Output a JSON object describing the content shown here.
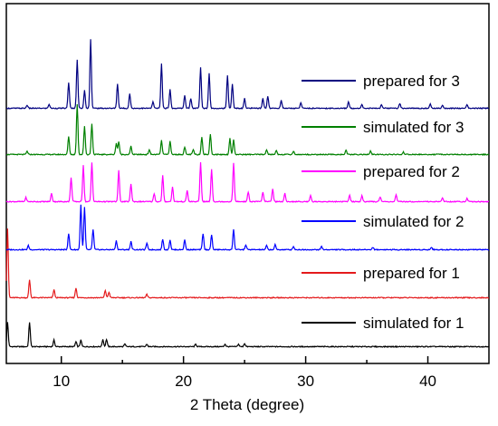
{
  "chart_data": {
    "type": "line",
    "title": "",
    "xlabel": "2 Theta (degree)",
    "ylabel": "",
    "xlim": [
      5.5,
      45
    ],
    "xticks": [
      "10",
      "20",
      "30",
      "40"
    ],
    "xtick_values": [
      10,
      20,
      30,
      40
    ],
    "y_ticks_shown": false,
    "grid": false,
    "legend_placement": "right, inline beside each trace",
    "series": [
      {
        "name": "simulated for 1",
        "color": "#000000",
        "peaks": [
          [
            5.6,
            30
          ],
          [
            7.4,
            30
          ],
          [
            9.4,
            8
          ],
          [
            11.2,
            6
          ],
          [
            11.6,
            8
          ],
          [
            13.4,
            9
          ],
          [
            13.7,
            9
          ],
          [
            15.2,
            3
          ],
          [
            17.0,
            3
          ],
          [
            21.0,
            3
          ],
          [
            23.4,
            3
          ],
          [
            24.5,
            3
          ],
          [
            25.0,
            4
          ]
        ]
      },
      {
        "name": "prepared for 1",
        "color": "#e41a1c",
        "peaks": [
          [
            5.6,
            85
          ],
          [
            7.4,
            22
          ],
          [
            9.4,
            10
          ],
          [
            11.2,
            12
          ],
          [
            13.6,
            9
          ],
          [
            13.9,
            7
          ],
          [
            17.0,
            4
          ]
        ]
      },
      {
        "name": "simulated for 2",
        "color": "#0000ff",
        "peaks": [
          [
            7.3,
            5
          ],
          [
            10.6,
            20
          ],
          [
            11.6,
            55
          ],
          [
            11.9,
            52
          ],
          [
            12.6,
            25
          ],
          [
            14.5,
            11
          ],
          [
            15.7,
            10
          ],
          [
            17.0,
            8
          ],
          [
            18.3,
            13
          ],
          [
            18.9,
            12
          ],
          [
            20.1,
            12
          ],
          [
            21.6,
            20
          ],
          [
            22.3,
            18
          ],
          [
            24.1,
            25
          ],
          [
            25.1,
            6
          ],
          [
            26.8,
            5
          ],
          [
            27.5,
            6
          ],
          [
            29.0,
            4
          ],
          [
            31.3,
            4
          ],
          [
            35.5,
            3
          ],
          [
            40.3,
            3
          ]
        ]
      },
      {
        "name": "prepared for 2",
        "color": "#ff00ff",
        "peaks": [
          [
            7.1,
            5
          ],
          [
            9.2,
            10
          ],
          [
            10.8,
            30
          ],
          [
            11.8,
            45
          ],
          [
            12.5,
            48
          ],
          [
            14.7,
            38
          ],
          [
            15.7,
            22
          ],
          [
            17.6,
            10
          ],
          [
            18.3,
            32
          ],
          [
            19.1,
            18
          ],
          [
            20.3,
            14
          ],
          [
            21.4,
            48
          ],
          [
            22.3,
            40
          ],
          [
            24.1,
            48
          ],
          [
            25.3,
            12
          ],
          [
            26.5,
            12
          ],
          [
            27.3,
            16
          ],
          [
            28.3,
            10
          ],
          [
            30.4,
            8
          ],
          [
            33.6,
            8
          ],
          [
            34.6,
            7
          ],
          [
            36.1,
            6
          ],
          [
            37.4,
            8
          ],
          [
            41.2,
            5
          ],
          [
            43.2,
            4
          ]
        ]
      },
      {
        "name": "simulated for 3",
        "color": "#008000",
        "peaks": [
          [
            7.2,
            4
          ],
          [
            10.6,
            22
          ],
          [
            11.3,
            62
          ],
          [
            11.9,
            35
          ],
          [
            12.5,
            38
          ],
          [
            14.5,
            14
          ],
          [
            14.7,
            16
          ],
          [
            15.7,
            10
          ],
          [
            17.2,
            6
          ],
          [
            18.2,
            17
          ],
          [
            18.9,
            16
          ],
          [
            20.1,
            9
          ],
          [
            20.8,
            6
          ],
          [
            21.5,
            22
          ],
          [
            22.2,
            25
          ],
          [
            23.8,
            20
          ],
          [
            24.1,
            18
          ],
          [
            26.8,
            6
          ],
          [
            27.6,
            5
          ],
          [
            29.0,
            4
          ],
          [
            33.3,
            5
          ],
          [
            35.3,
            4
          ],
          [
            38.0,
            3
          ]
        ]
      },
      {
        "name": "prepared for 3",
        "color": "#000080",
        "peaks": [
          [
            7.2,
            4
          ],
          [
            9.0,
            5
          ],
          [
            10.6,
            32
          ],
          [
            11.3,
            60
          ],
          [
            11.9,
            22
          ],
          [
            12.4,
            85
          ],
          [
            14.6,
            30
          ],
          [
            15.6,
            18
          ],
          [
            17.5,
            8
          ],
          [
            18.2,
            55
          ],
          [
            18.9,
            23
          ],
          [
            20.1,
            16
          ],
          [
            20.6,
            12
          ],
          [
            21.4,
            50
          ],
          [
            22.1,
            43
          ],
          [
            23.6,
            40
          ],
          [
            24.0,
            30
          ],
          [
            25.0,
            12
          ],
          [
            26.5,
            12
          ],
          [
            26.9,
            15
          ],
          [
            28.0,
            10
          ],
          [
            29.6,
            7
          ],
          [
            33.5,
            8
          ],
          [
            34.6,
            5
          ],
          [
            36.2,
            4
          ],
          [
            37.7,
            6
          ],
          [
            40.2,
            5
          ],
          [
            41.2,
            4
          ],
          [
            43.2,
            4
          ]
        ]
      }
    ]
  }
}
